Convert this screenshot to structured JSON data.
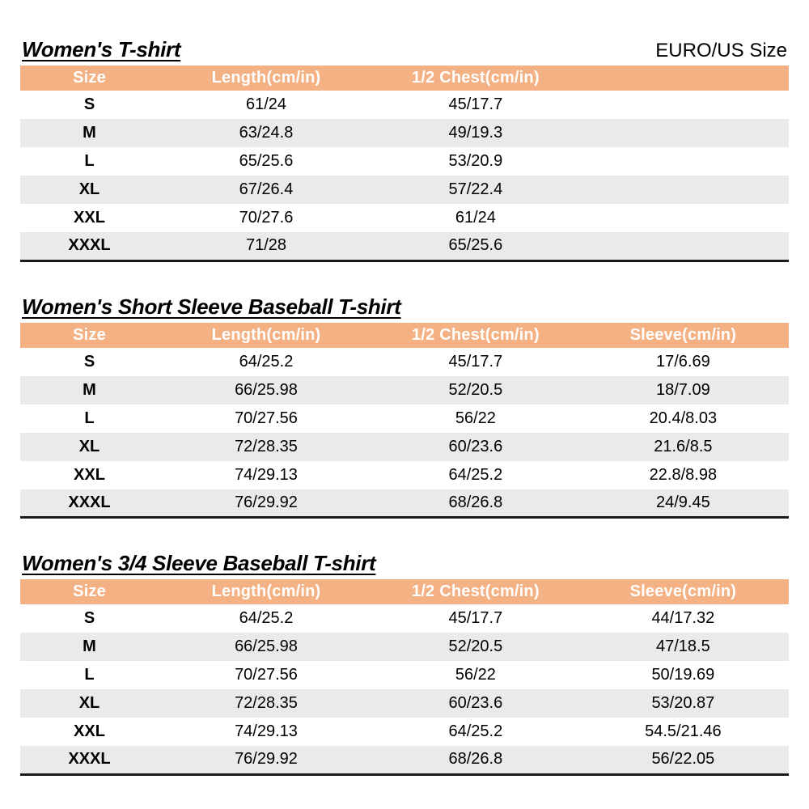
{
  "page": {
    "size_standard": "EURO/US Size"
  },
  "colors": {
    "header_bg": "#F4B183",
    "header_text": "#FFFFFF",
    "alt_row_bg": "#EAEAEA",
    "border_black": "#1A1A1A"
  },
  "tables": [
    {
      "title": "Women's T-shirt",
      "columns": [
        "Size",
        "Length(cm/in)",
        "1/2 Chest(cm/in)",
        ""
      ],
      "rows": [
        [
          "S",
          "61/24",
          "45/17.7",
          ""
        ],
        [
          "M",
          "63/24.8",
          "49/19.3",
          ""
        ],
        [
          "L",
          "65/25.6",
          "53/20.9",
          ""
        ],
        [
          "XL",
          "67/26.4",
          "57/22.4",
          ""
        ],
        [
          "XXL",
          "70/27.6",
          "61/24",
          ""
        ],
        [
          "XXXL",
          "71/28",
          "65/25.6",
          ""
        ]
      ]
    },
    {
      "title": "Women's Short Sleeve Baseball T-shirt",
      "columns": [
        "Size",
        "Length(cm/in)",
        "1/2 Chest(cm/in)",
        "Sleeve(cm/in)"
      ],
      "rows": [
        [
          "S",
          "64/25.2",
          "45/17.7",
          "17/6.69"
        ],
        [
          "M",
          "66/25.98",
          "52/20.5",
          "18/7.09"
        ],
        [
          "L",
          "70/27.56",
          "56/22",
          "20.4/8.03"
        ],
        [
          "XL",
          "72/28.35",
          "60/23.6",
          "21.6/8.5"
        ],
        [
          "XXL",
          "74/29.13",
          "64/25.2",
          "22.8/8.98"
        ],
        [
          "XXXL",
          "76/29.92",
          "68/26.8",
          "24/9.45"
        ]
      ]
    },
    {
      "title": "Women's 3/4 Sleeve Baseball T-shirt",
      "columns": [
        "Size",
        "Length(cm/in)",
        "1/2 Chest(cm/in)",
        "Sleeve(cm/in)"
      ],
      "rows": [
        [
          "S",
          "64/25.2",
          "45/17.7",
          "44/17.32"
        ],
        [
          "M",
          "66/25.98",
          "52/20.5",
          "47/18.5"
        ],
        [
          "L",
          "70/27.56",
          "56/22",
          "50/19.69"
        ],
        [
          "XL",
          "72/28.35",
          "60/23.6",
          "53/20.87"
        ],
        [
          "XXL",
          "74/29.13",
          "64/25.2",
          "54.5/21.46"
        ],
        [
          "XXXL",
          "76/29.92",
          "68/26.8",
          "56/22.05"
        ]
      ]
    }
  ]
}
